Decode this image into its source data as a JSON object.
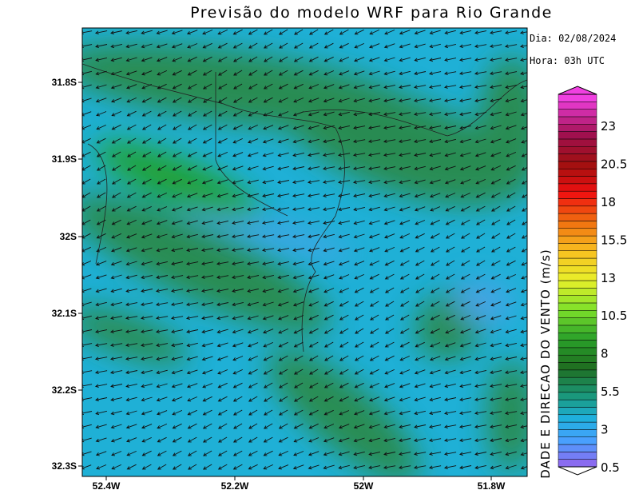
{
  "title": "Previsão do modelo WRF para Rio Grande",
  "info": {
    "date": "Dia: 02/08/2024",
    "hour": "Hora: 03h UTC"
  },
  "lat_labels": [
    "31.8S",
    "31.9S",
    "32S",
    "32.1S",
    "32.2S",
    "32.3S"
  ],
  "lon_labels": [
    "52.4W",
    "52.2W",
    "52W",
    "51.8W"
  ],
  "colorbar": {
    "title": "DADE E DIRECAO DO VENTO (m/s)",
    "labels": [
      "23",
      "20.5",
      "18",
      "15.5",
      "13",
      "10.5",
      "8",
      "5.5",
      "3",
      "0.5"
    ]
  }
}
